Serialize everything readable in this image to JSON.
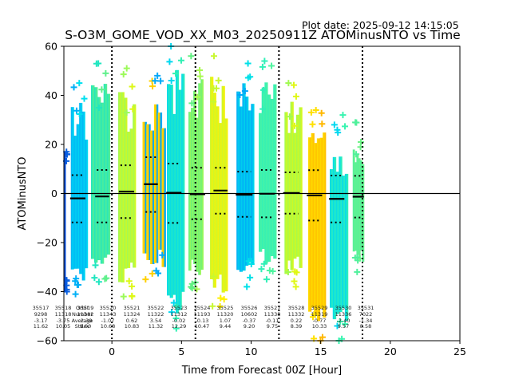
{
  "plot_date": "Plot date: 2025-09-12 14:15:05",
  "chart_data": {
    "type": "scatter",
    "title": "S-O3M_GOME_VOD_XX_M03_20250911Z ATOMinusNTO vs Time",
    "xlabel": "Time from Forecast 00Z [Hour]",
    "ylabel": "ATOMinusNTO",
    "xlim": [
      -3.45,
      25
    ],
    "ylim": [
      -60,
      60
    ],
    "xticks": [
      0,
      5,
      10,
      15,
      20,
      25
    ],
    "yticks": [
      -60,
      -40,
      -20,
      0,
      20,
      40,
      60
    ],
    "zero_line": 0,
    "vlines": [
      0,
      6,
      12,
      18
    ],
    "row_labels": [
      "Orbit",
      "Number",
      "Average",
      "Stdev"
    ],
    "orbits": [
      {
        "orbit": "35517",
        "number": "9298",
        "average": "-3.17",
        "stdev": "11.62",
        "x0": -3.45,
        "x1": -3.35,
        "ymin": -40,
        "ymax": 17,
        "c0": "#0a4fd6",
        "c1": "#0a60e0"
      },
      {
        "orbit": "35518",
        "number": "11318",
        "average": "-3.75",
        "stdev": "10.05",
        "x0": -2.95,
        "x1": -1.75,
        "ymin": -41,
        "ymax": 45,
        "c0": "#00b0f6",
        "c1": "#00e0f0"
      },
      {
        "orbit": "35519",
        "number": "11382",
        "average": "-2.39",
        "stdev": "9.90",
        "x0": -1.5,
        "x1": -0.15,
        "ymin": -36,
        "ymax": 53,
        "c0": "#20e6c0",
        "c1": "#60f08c"
      },
      {
        "orbit": "35520",
        "number": "11343",
        "average": "-1.07",
        "stdev": "10.68",
        "x0": 0.45,
        "x1": 1.7,
        "ymin": -42,
        "ymax": 51,
        "c0": "#9cfa5a",
        "c1": "#ddf816"
      },
      {
        "orbit": "35521",
        "number": "11324",
        "average": "0.62",
        "stdev": "10.83",
        "x0": 2.2,
        "x1": 3.85,
        "ymin": -35,
        "ymax": 48,
        "c0": "#ffd000",
        "c1": "#00a8f8",
        "split": true
      },
      {
        "orbit": "35522",
        "number": "11322",
        "average": "3.54",
        "stdev": "11.32",
        "x0": 3.95,
        "x1": 5.2,
        "ymin": -55,
        "ymax": 60,
        "c0": "#00d8f0",
        "c1": "#30f0b4"
      },
      {
        "orbit": "35523",
        "number": "11312",
        "average": "-0.02",
        "stdev": "12.29",
        "x0": 5.5,
        "x1": 6.55,
        "ymin": -39,
        "ymax": 56,
        "c0": "#60f080",
        "c1": "#a8fa50"
      },
      {
        "orbit": "35524",
        "number": "11193",
        "average": "-0.13",
        "stdev": "10.47",
        "x0": 7.05,
        "x1": 8.3,
        "ymin": -46,
        "ymax": 56,
        "c0": "#c8f830",
        "c1": "#fff000"
      },
      {
        "orbit": "35525",
        "number": "11320",
        "average": "1.07",
        "stdev": "9.44",
        "x0": 8.95,
        "x1": 10.2,
        "ymin": -38,
        "ymax": 53,
        "c0": "#00a8f8",
        "c1": "#00e0e8"
      },
      {
        "orbit": "35526",
        "number": "10602",
        "average": "-0.37",
        "stdev": "9.20",
        "x0": 10.55,
        "x1": 11.8,
        "ymin": -35,
        "ymax": 54,
        "c0": "#30f0b8",
        "c1": "#50f4a0"
      },
      {
        "orbit": "35527",
        "number": "11338",
        "average": "-0.11",
        "stdev": "9.75",
        "x0": 12.4,
        "x1": 13.65,
        "ymin": -38,
        "ymax": 45,
        "c0": "#a0fa50",
        "c1": "#e0f814"
      },
      {
        "orbit": "35528",
        "number": "11332",
        "average": "0.22",
        "stdev": "8.39",
        "x0": 14.1,
        "x1": 15.35,
        "ymin": -60,
        "ymax": 34,
        "c0": "#ffe000",
        "c1": "#ffb800"
      },
      {
        "orbit": "35529",
        "number": "11319",
        "average": "-0.77",
        "stdev": "10.33",
        "x0": 15.65,
        "x1": 16.95,
        "ymin": -60,
        "ymax": 32,
        "c0": "#00d8f0",
        "c1": "#38f4b0"
      },
      {
        "orbit": "35530",
        "number": "11336",
        "average": "-2.40",
        "stdev": "9.57",
        "x0": 17.3,
        "x1": 18.1,
        "ymin": -32,
        "ymax": 29,
        "c0": "#50f09c",
        "c1": "#70f488"
      },
      {
        "orbit": "35531",
        "number": "7022",
        "average": "-1.34",
        "stdev": "8.58",
        "x0": 18.1,
        "x1": 18.1,
        "ymin": 0,
        "ymax": 0,
        "c0": "#70f488",
        "c1": "#70f488"
      }
    ],
    "means": [
      {
        "x0": -3.0,
        "x1": -1.9,
        "y": -2.0,
        "plus": 7.5,
        "minus": -11.8
      },
      {
        "x0": -1.2,
        "x1": -0.2,
        "y": -1.2,
        "plus": 9.6,
        "minus": -11.8
      },
      {
        "x0": 0.5,
        "x1": 1.6,
        "y": 0.8,
        "plus": 11.5,
        "minus": -10.0
      },
      {
        "x0": 2.3,
        "x1": 3.3,
        "y": 3.8,
        "plus": 14.8,
        "minus": -7.5
      },
      {
        "x0": 3.9,
        "x1": 5.0,
        "y": 0.3,
        "plus": 12.2,
        "minus": -12.0
      },
      {
        "x0": 5.6,
        "x1": 6.7,
        "y": -0.3,
        "plus": 10.5,
        "minus": -10.5
      },
      {
        "x0": 7.3,
        "x1": 8.3,
        "y": 1.2,
        "plus": 10.5,
        "minus": -8.2
      },
      {
        "x0": 8.9,
        "x1": 10.1,
        "y": -0.5,
        "plus": 8.9,
        "minus": -9.5
      },
      {
        "x0": 10.6,
        "x1": 11.7,
        "y": -0.1,
        "plus": 9.6,
        "minus": -9.7
      },
      {
        "x0": 12.3,
        "x1": 13.5,
        "y": 0.2,
        "plus": 8.6,
        "minus": -8.2
      },
      {
        "x0": 14.0,
        "x1": 15.1,
        "y": -0.8,
        "plus": 9.5,
        "minus": -11.0
      },
      {
        "x0": 15.6,
        "x1": 16.7,
        "y": -2.2,
        "plus": 7.3,
        "minus": -11.8
      },
      {
        "x0": 17.3,
        "x1": 18.1,
        "y": -1.3,
        "plus": 7.2,
        "minus": -9.8
      }
    ]
  }
}
